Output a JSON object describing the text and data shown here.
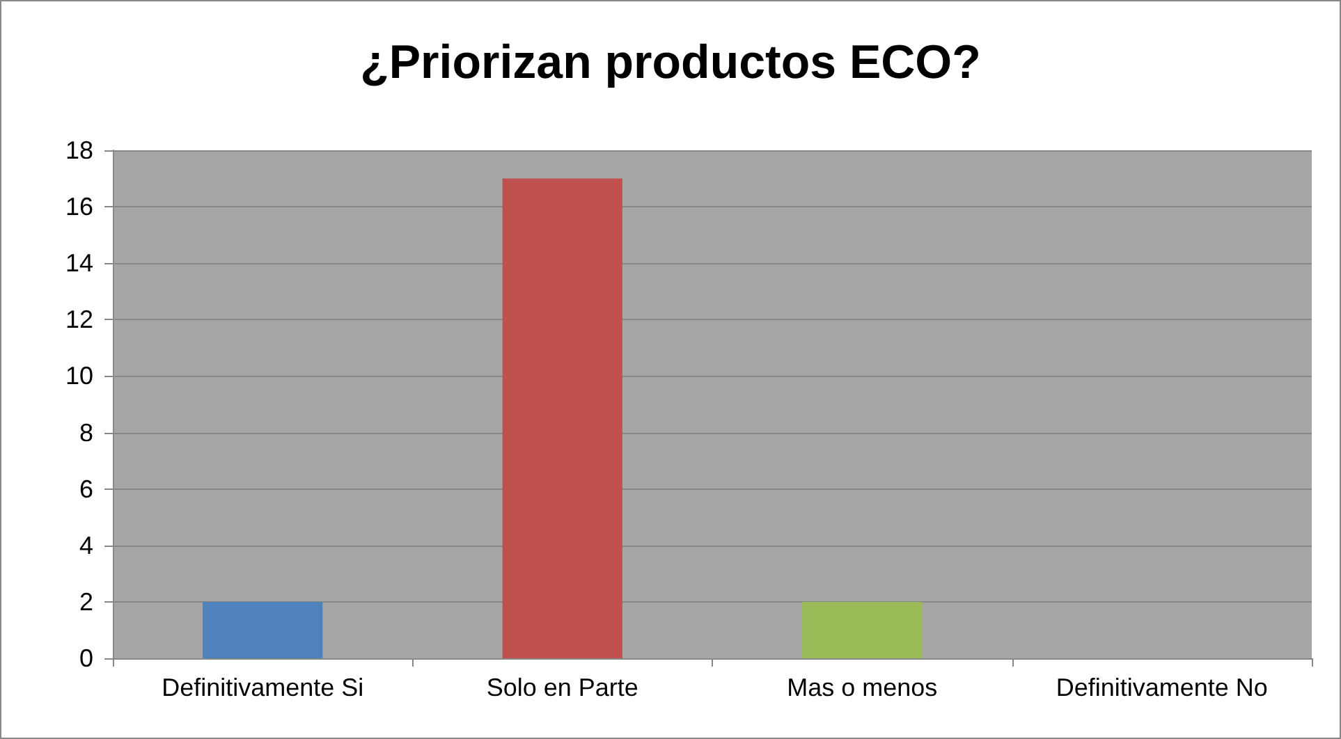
{
  "chart_data": {
    "type": "bar",
    "title": "¿Priorizan productos ECO?",
    "categories": [
      "Definitivamente Si",
      "Solo en Parte",
      "Mas o menos",
      "Definitivamente No"
    ],
    "values": [
      2,
      17,
      2,
      0
    ],
    "colors": [
      "#4f81bd",
      "#c0504d",
      "#9bbb59",
      "#8064a2"
    ],
    "ylim": [
      0,
      18
    ],
    "yticks": [
      0,
      2,
      4,
      6,
      8,
      10,
      12,
      14,
      16,
      18
    ],
    "grid": "y"
  }
}
